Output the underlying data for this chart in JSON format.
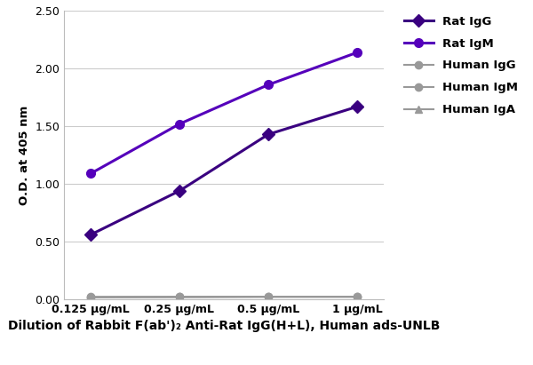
{
  "x_labels": [
    "0.125 μg/mL",
    "0.25 μg/mL",
    "0.5 μg/mL",
    "1 μg/mL"
  ],
  "x_positions": [
    0,
    1,
    2,
    3
  ],
  "series": [
    {
      "label": "Rat IgG",
      "values": [
        0.56,
        0.94,
        1.43,
        1.67
      ],
      "color": "#3a0080",
      "marker": "D",
      "linewidth": 2.2,
      "markersize": 7,
      "zorder": 3
    },
    {
      "label": "Rat IgM",
      "values": [
        1.09,
        1.52,
        1.86,
        2.14
      ],
      "color": "#5500bb",
      "marker": "o",
      "linewidth": 2.2,
      "markersize": 7,
      "zorder": 4
    },
    {
      "label": "Human IgG",
      "values": [
        0.018,
        0.02,
        0.022,
        0.022
      ],
      "color": "#999999",
      "marker": "o",
      "linewidth": 1.5,
      "markersize": 6,
      "zorder": 2
    },
    {
      "label": "Human IgM",
      "values": [
        0.02,
        0.021,
        0.023,
        0.022
      ],
      "color": "#999999",
      "marker": "o",
      "linewidth": 1.5,
      "markersize": 6,
      "zorder": 2
    },
    {
      "label": "Human IgA",
      "values": [
        0.019,
        0.021,
        0.022,
        0.023
      ],
      "color": "#999999",
      "marker": "^",
      "linewidth": 1.5,
      "markersize": 6,
      "zorder": 2
    }
  ],
  "ylabel": "O.D. at 405 nm",
  "xlabel": "Dilution of Rabbit F(ab')₂ Anti-Rat IgG(H+L), Human ads-UNLB",
  "ylim": [
    0.0,
    2.5
  ],
  "yticks": [
    0.0,
    0.5,
    1.0,
    1.5,
    2.0,
    2.5
  ],
  "background_color": "#ffffff",
  "grid_color": "#cccccc",
  "legend_fontsize": 9.5,
  "axis_fontsize": 9,
  "xlabel_fontsize": 10,
  "ylabel_fontsize": 9.5
}
